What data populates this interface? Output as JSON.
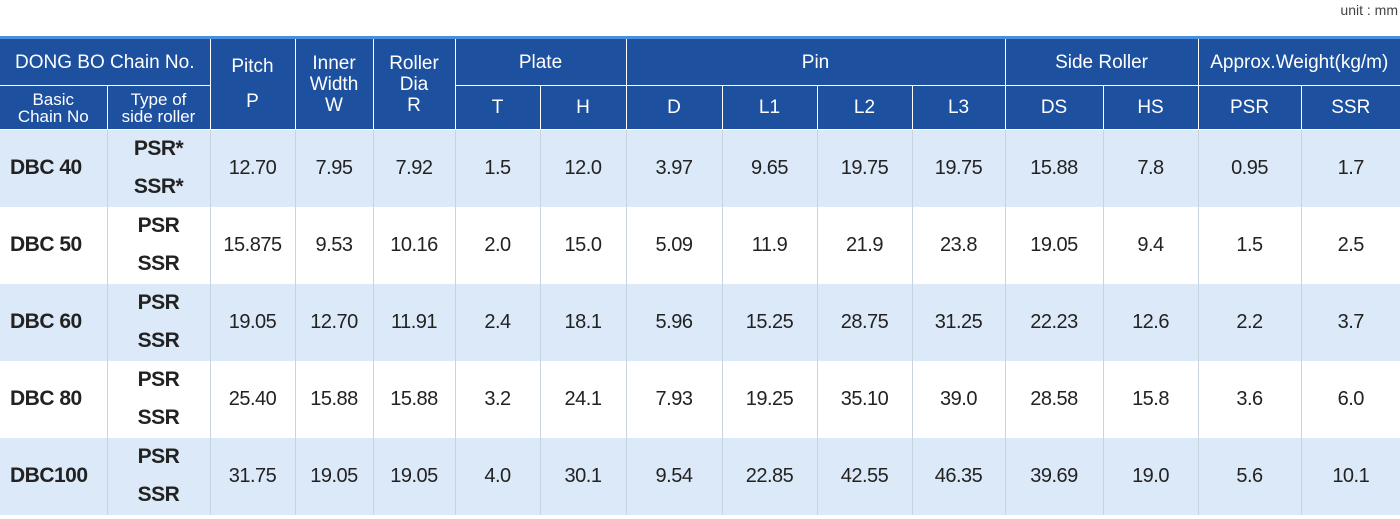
{
  "unit": "unit : mm",
  "header": {
    "group": "DONG BO Chain No.",
    "basic": [
      "Basic",
      "Chain No"
    ],
    "type": [
      "Type of",
      "side roller"
    ],
    "pitch": [
      "Pitch",
      "P"
    ],
    "inner": [
      "Inner",
      "Width",
      "W"
    ],
    "roller": [
      "Roller",
      "Dia",
      "R"
    ],
    "plate": "Plate",
    "pin": "Pin",
    "side": "Side Roller",
    "weight": "Approx.Weight(kg/m)",
    "sub": [
      "T",
      "H",
      "D",
      "L1",
      "L2",
      "L3",
      "DS",
      "HS",
      "PSR",
      "SSR"
    ]
  },
  "table": {
    "rows": [
      {
        "chain": "DBC 40",
        "types": [
          "PSR*",
          "SSR*"
        ],
        "values": [
          "12.70",
          "7.95",
          "7.92",
          "1.5",
          "12.0",
          "3.97",
          "9.65",
          "19.75",
          "19.75",
          "15.88",
          "7.8",
          "0.95",
          "1.7"
        ]
      },
      {
        "chain": "DBC 50",
        "types": [
          "PSR",
          "SSR"
        ],
        "values": [
          "15.875",
          "9.53",
          "10.16",
          "2.0",
          "15.0",
          "5.09",
          "11.9",
          "21.9",
          "23.8",
          "19.05",
          "9.4",
          "1.5",
          "2.5"
        ]
      },
      {
        "chain": "DBC 60",
        "types": [
          "PSR",
          "SSR"
        ],
        "values": [
          "19.05",
          "12.70",
          "11.91",
          "2.4",
          "18.1",
          "5.96",
          "15.25",
          "28.75",
          "31.25",
          "22.23",
          "12.6",
          "2.2",
          "3.7"
        ]
      },
      {
        "chain": "DBC 80",
        "types": [
          "PSR",
          "SSR"
        ],
        "values": [
          "25.40",
          "15.88",
          "15.88",
          "3.2",
          "24.1",
          "7.93",
          "19.25",
          "35.10",
          "39.0",
          "28.58",
          "15.8",
          "3.6",
          "6.0"
        ]
      },
      {
        "chain": "DBC100",
        "types": [
          "PSR",
          "SSR"
        ],
        "values": [
          "31.75",
          "19.05",
          "19.05",
          "4.0",
          "30.1",
          "9.54",
          "22.85",
          "42.55",
          "46.35",
          "39.69",
          "19.0",
          "5.6",
          "10.1"
        ]
      }
    ]
  }
}
